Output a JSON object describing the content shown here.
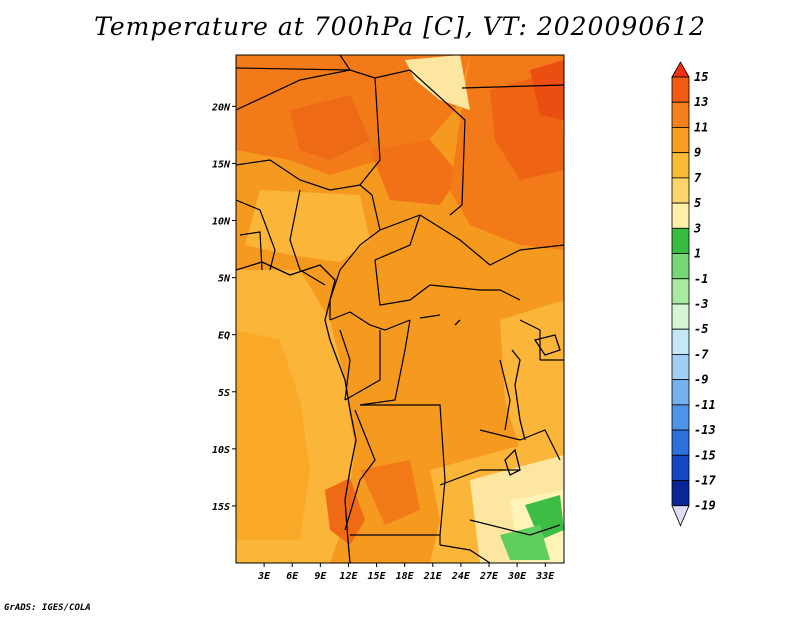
{
  "title": "Temperature at 700hPa [C], VT: 2020090612",
  "credit": "GrADS: IGES/COLA",
  "map": {
    "lat_labels": [
      "20N",
      "15N",
      "10N",
      "5N",
      "EQ",
      "5S",
      "10S",
      "15S"
    ],
    "lat_values": [
      20,
      15,
      10,
      5,
      0,
      -5,
      -10,
      -15
    ],
    "lon_labels": [
      "3E",
      "6E",
      "9E",
      "12E",
      "15E",
      "18E",
      "21E",
      "24E",
      "27E",
      "30E",
      "33E"
    ],
    "lon_values": [
      3,
      6,
      9,
      12,
      15,
      18,
      21,
      24,
      27,
      30,
      33
    ],
    "lon_range": [
      0,
      35
    ],
    "lat_range": [
      -20,
      24.5
    ]
  },
  "colorbar": {
    "labels": [
      "15",
      "13",
      "11",
      "9",
      "7",
      "5",
      "3",
      "1",
      "-1",
      "-3",
      "-5",
      "-7",
      "-9",
      "-11",
      "-13",
      "-15",
      "-17",
      "-19"
    ],
    "colors": [
      "#f03010",
      "#f55a14",
      "#f7801a",
      "#f99d20",
      "#fbba33",
      "#fdd46a",
      "#fff0a8",
      "#36bc3f",
      "#76d875",
      "#a8eba0",
      "#d4f6d2",
      "#c5e8f7",
      "#9fcff4",
      "#74b1ee",
      "#4d93e8",
      "#2c70dd",
      "#1347c3",
      "#0a2596",
      "#060f5e"
    ],
    "end_triangle_colors": [
      "#e0281a",
      "#dcdcf5"
    ]
  },
  "colors": {
    "field_warm": "#f5991f",
    "field_hot": "#f37a18",
    "field_mild": "#fbb63a",
    "field_cool": "#fde6a0",
    "field_green": "#3cbd44",
    "border": "#000000"
  }
}
